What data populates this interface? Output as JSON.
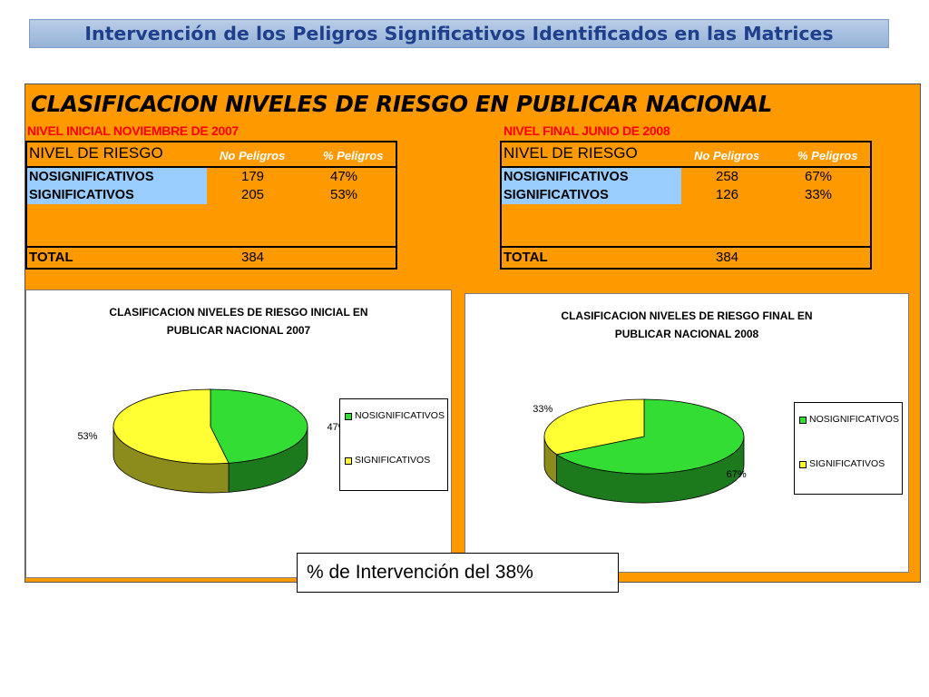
{
  "slide": {
    "title": "Intervención de los Peligros Significativos Identificados en las Matrices"
  },
  "sheet": {
    "title": "CLASIFICACION NIVELES DE RIESGO EN PUBLICAR NACIONAL"
  },
  "tables": [
    {
      "period": "NIVEL INICIAL NOVIEMBRE DE 2007",
      "headers": [
        "NIVEL DE RIESGO",
        "No Peligros",
        "% Peligros"
      ],
      "rows": [
        {
          "label": "NOSIGNIFICATIVOS",
          "count": "179",
          "percent": "47%"
        },
        {
          "label": "SIGNIFICATIVOS",
          "count": "205",
          "percent": "53%"
        }
      ],
      "total_label": "TOTAL",
      "total": "384"
    },
    {
      "period": "NIVEL FINAL JUNIO DE 2008",
      "headers": [
        "NIVEL DE RIESGO",
        "No Peligros",
        "% Peligros"
      ],
      "rows": [
        {
          "label": "NOSIGNIFICATIVOS",
          "count": "258",
          "percent": "67%"
        },
        {
          "label": "SIGNIFICATIVOS",
          "count": "126",
          "percent": "33%"
        }
      ],
      "total_label": "TOTAL",
      "total": "384"
    }
  ],
  "chart_data": [
    {
      "type": "pie",
      "title_lines": [
        "CLASIFICACION NIVELES DE RIESGO INICIAL EN",
        "PUBLICAR NACIONAL 2007"
      ],
      "slices": [
        {
          "label": "NOSIGNIFICATIVOS",
          "value": 47,
          "display": "47%",
          "color": "#33dd33"
        },
        {
          "label": "SIGNIFICATIVOS",
          "value": 53,
          "display": "53%",
          "color": "#ffff33"
        }
      ],
      "legend": [
        "NOSIGNIFICATIVOS",
        "SIGNIFICATIVOS"
      ],
      "legend_position": "right",
      "three_d": true
    },
    {
      "type": "pie",
      "title_lines": [
        "CLASIFICACION NIVELES DE RIESGO FINAL EN",
        "PUBLICAR NACIONAL 2008"
      ],
      "slices": [
        {
          "label": "NOSIGNIFICATIVOS",
          "value": 67,
          "display": "67%",
          "color": "#33dd33"
        },
        {
          "label": "SIGNIFICATIVOS",
          "value": 33,
          "display": "33%",
          "color": "#ffff33"
        }
      ],
      "legend": [
        "NOSIGNIFICATIVOS",
        "SIGNIFICATIVOS"
      ],
      "legend_position": "right",
      "three_d": true
    }
  ],
  "callout": {
    "text": "% de Intervención del 38%"
  },
  "colors": {
    "sheet_background": "#ff9900",
    "header_label_fill": "#99ccff",
    "period_label": "#ff0000",
    "title_text": "#1f3f8c"
  }
}
